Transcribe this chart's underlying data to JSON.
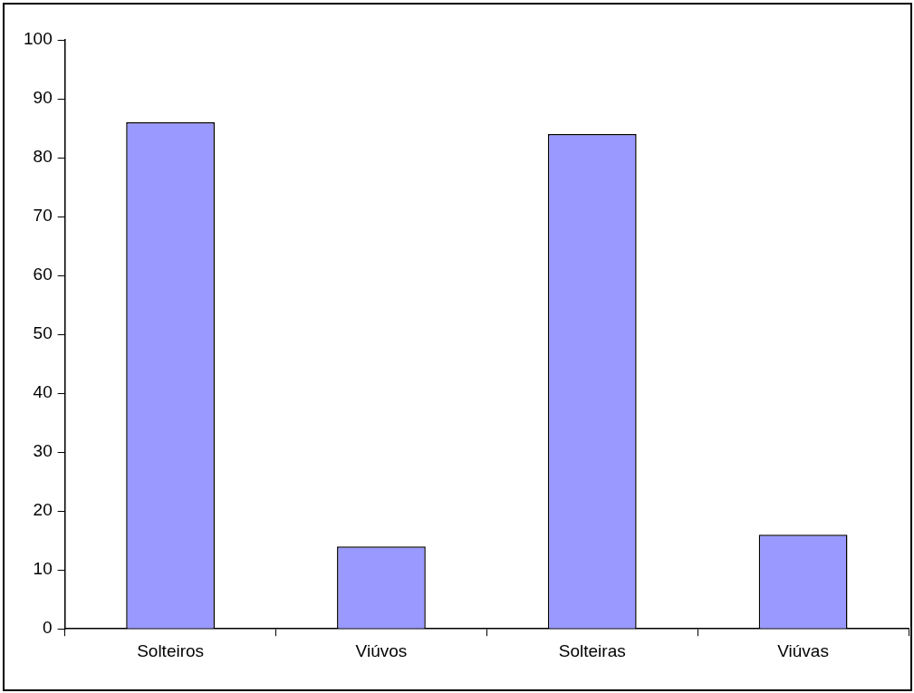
{
  "chart_data": {
    "type": "bar",
    "categories": [
      "Solteiros",
      "Viúvos",
      "Solteiras",
      "Viúvas"
    ],
    "values": [
      86,
      14,
      84,
      16
    ],
    "color": "#9999ff",
    "ylim": [
      0,
      100
    ],
    "yticks": [
      0,
      10,
      20,
      30,
      40,
      50,
      60,
      70,
      80,
      90,
      100
    ],
    "grid": false,
    "legend": false
  }
}
